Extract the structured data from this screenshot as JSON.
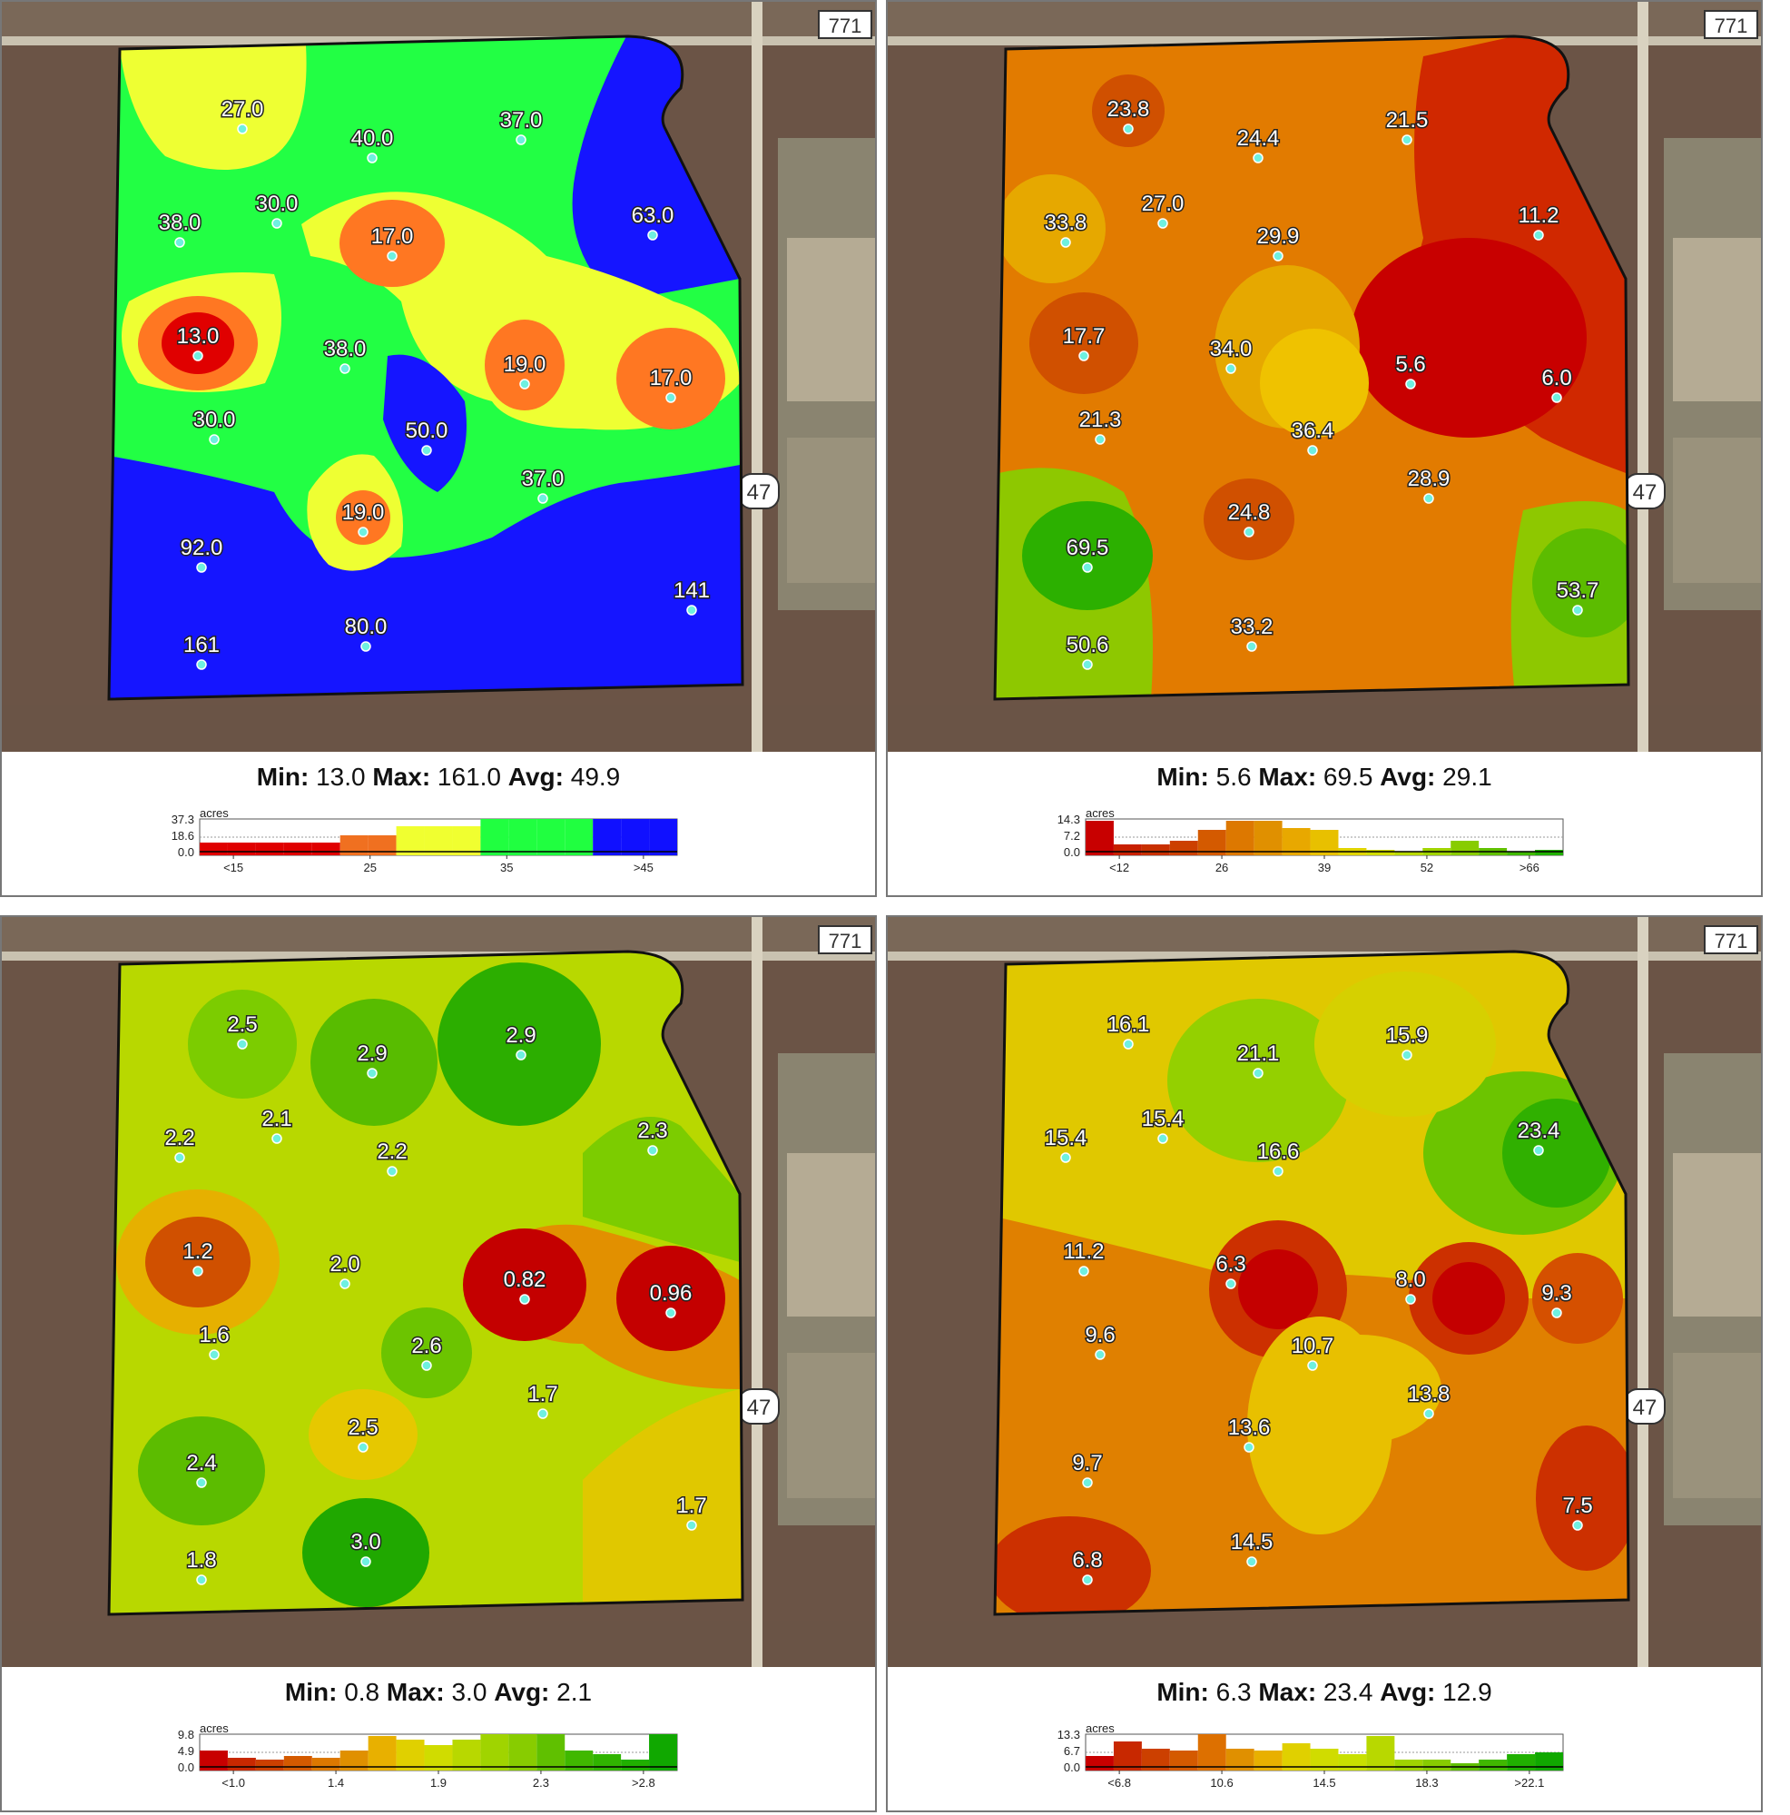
{
  "road_labels": {
    "top": "771",
    "side": "47"
  },
  "axis_unit": "acres",
  "stat_labels": {
    "min": "Min:",
    "max": "Max:",
    "avg": "Avg:"
  },
  "panels": [
    {
      "id": "p1",
      "stats": {
        "min": "13.0",
        "max": "161.0",
        "avg": "49.9"
      },
      "points": [
        "27.0",
        "40.0",
        "37.0",
        "38.0",
        "30.0",
        "17.0",
        "63.0",
        "13.0",
        "38.0",
        "19.0",
        "17.0",
        "30.0",
        "50.0",
        "37.0",
        "19.0",
        "92.0",
        "141",
        "161",
        "80.0"
      ],
      "legend": {
        "yticks": [
          "37.3",
          "18.6",
          "0.0"
        ],
        "xticks": [
          "<15",
          "25",
          "35",
          ">45"
        ],
        "bins": [
          {
            "value": 0.35,
            "color": "#e00000"
          },
          {
            "value": 0.35,
            "color": "#e00000"
          },
          {
            "value": 0.35,
            "color": "#e00000"
          },
          {
            "value": 0.35,
            "color": "#e00000"
          },
          {
            "value": 0.35,
            "color": "#e00000"
          },
          {
            "value": 0.55,
            "color": "#f07020"
          },
          {
            "value": 0.55,
            "color": "#f07020"
          },
          {
            "value": 0.8,
            "color": "#f0ff30"
          },
          {
            "value": 0.8,
            "color": "#f0ff30"
          },
          {
            "value": 0.8,
            "color": "#f0ff30"
          },
          {
            "value": 1.0,
            "color": "#20ff40"
          },
          {
            "value": 1.0,
            "color": "#20ff40"
          },
          {
            "value": 1.0,
            "color": "#20ff40"
          },
          {
            "value": 1.0,
            "color": "#20ff40"
          },
          {
            "value": 1.0,
            "color": "#1010ff"
          },
          {
            "value": 1.0,
            "color": "#1010ff"
          },
          {
            "value": 1.0,
            "color": "#1010ff"
          }
        ]
      }
    },
    {
      "id": "p2",
      "stats": {
        "min": "5.6",
        "max": "69.5",
        "avg": "29.1"
      },
      "points": [
        "23.8",
        "24.4",
        "21.5",
        "33.8",
        "27.0",
        "29.9",
        "11.2",
        "17.7",
        "34.0",
        "5.6",
        "6.0",
        "21.3",
        "36.4",
        "28.9",
        "24.8",
        "69.5",
        "53.7",
        "50.6",
        "33.2"
      ],
      "legend": {
        "yticks": [
          "14.3",
          "7.2",
          "0.0"
        ],
        "xticks": [
          "<12",
          "26",
          "39",
          "52",
          ">66"
        ],
        "bins": [
          {
            "value": 0.95,
            "color": "#c80000"
          },
          {
            "value": 0.3,
            "color": "#c82000"
          },
          {
            "value": 0.3,
            "color": "#c83000"
          },
          {
            "value": 0.4,
            "color": "#cc4000"
          },
          {
            "value": 0.7,
            "color": "#d45a00"
          },
          {
            "value": 0.95,
            "color": "#dd7800"
          },
          {
            "value": 0.95,
            "color": "#e09000"
          },
          {
            "value": 0.75,
            "color": "#e8a800"
          },
          {
            "value": 0.7,
            "color": "#e8c000"
          },
          {
            "value": 0.2,
            "color": "#e0d400"
          },
          {
            "value": 0.15,
            "color": "#d0dc00"
          },
          {
            "value": 0.1,
            "color": "#b8d800"
          },
          {
            "value": 0.2,
            "color": "#a0d400"
          },
          {
            "value": 0.4,
            "color": "#88cc00"
          },
          {
            "value": 0.2,
            "color": "#60c000"
          },
          {
            "value": 0.1,
            "color": "#40b800"
          },
          {
            "value": 0.15,
            "color": "#20b000"
          }
        ]
      }
    },
    {
      "id": "p3",
      "stats": {
        "min": "0.8",
        "max": "3.0",
        "avg": "2.1"
      },
      "points": [
        "2.5",
        "2.9",
        "2.9",
        "2.2",
        "2.1",
        "2.2",
        "2.3",
        "1.2",
        "2.0",
        "0.82",
        "0.96",
        "1.6",
        "2.6",
        "1.7",
        "2.5",
        "2.4",
        "1.7",
        "1.8",
        "3.0"
      ],
      "legend": {
        "yticks": [
          "9.8",
          "4.9",
          "0.0"
        ],
        "xticks": [
          "<1.0",
          "1.4",
          "1.9",
          "2.3",
          ">2.8"
        ],
        "bins": [
          {
            "value": 0.55,
            "color": "#c80000"
          },
          {
            "value": 0.35,
            "color": "#c82800"
          },
          {
            "value": 0.3,
            "color": "#cc4000"
          },
          {
            "value": 0.4,
            "color": "#d45a00"
          },
          {
            "value": 0.35,
            "color": "#dd7800"
          },
          {
            "value": 0.55,
            "color": "#e09000"
          },
          {
            "value": 0.95,
            "color": "#e8b000"
          },
          {
            "value": 0.85,
            "color": "#e0d000"
          },
          {
            "value": 0.7,
            "color": "#d0dc00"
          },
          {
            "value": 0.85,
            "color": "#b8d800"
          },
          {
            "value": 1.0,
            "color": "#a0d400"
          },
          {
            "value": 1.0,
            "color": "#88cc00"
          },
          {
            "value": 1.0,
            "color": "#60c000"
          },
          {
            "value": 0.55,
            "color": "#40b800"
          },
          {
            "value": 0.45,
            "color": "#30b400"
          },
          {
            "value": 0.3,
            "color": "#20b000"
          },
          {
            "value": 1.0,
            "color": "#10a800"
          }
        ]
      }
    },
    {
      "id": "p4",
      "stats": {
        "min": "6.3",
        "max": "23.4",
        "avg": "12.9"
      },
      "points": [
        "16.1",
        "21.1",
        "15.9",
        "15.4",
        "15.4",
        "16.6",
        "23.4",
        "11.2",
        "6.3",
        "8.0",
        "9.3",
        "9.6",
        "10.7",
        "13.8",
        "13.6",
        "9.7",
        "7.5",
        "6.8",
        "14.5"
      ],
      "legend": {
        "yticks": [
          "13.3",
          "6.7",
          "0.0"
        ],
        "xticks": [
          "<6.8",
          "10.6",
          "14.5",
          "18.3",
          ">22.1"
        ],
        "bins": [
          {
            "value": 0.4,
            "color": "#c80000"
          },
          {
            "value": 0.8,
            "color": "#c82800"
          },
          {
            "value": 0.6,
            "color": "#cc4000"
          },
          {
            "value": 0.55,
            "color": "#d45a00"
          },
          {
            "value": 1.0,
            "color": "#dd7000"
          },
          {
            "value": 0.6,
            "color": "#e09000"
          },
          {
            "value": 0.55,
            "color": "#e8b000"
          },
          {
            "value": 0.75,
            "color": "#e0d000"
          },
          {
            "value": 0.6,
            "color": "#d0dc00"
          },
          {
            "value": 0.45,
            "color": "#c8e000"
          },
          {
            "value": 0.95,
            "color": "#b8d800"
          },
          {
            "value": 0.3,
            "color": "#a0d400"
          },
          {
            "value": 0.3,
            "color": "#88cc00"
          },
          {
            "value": 0.2,
            "color": "#60c000"
          },
          {
            "value": 0.3,
            "color": "#40b800"
          },
          {
            "value": 0.45,
            "color": "#20b000"
          },
          {
            "value": 0.5,
            "color": "#10a800"
          }
        ]
      }
    }
  ]
}
